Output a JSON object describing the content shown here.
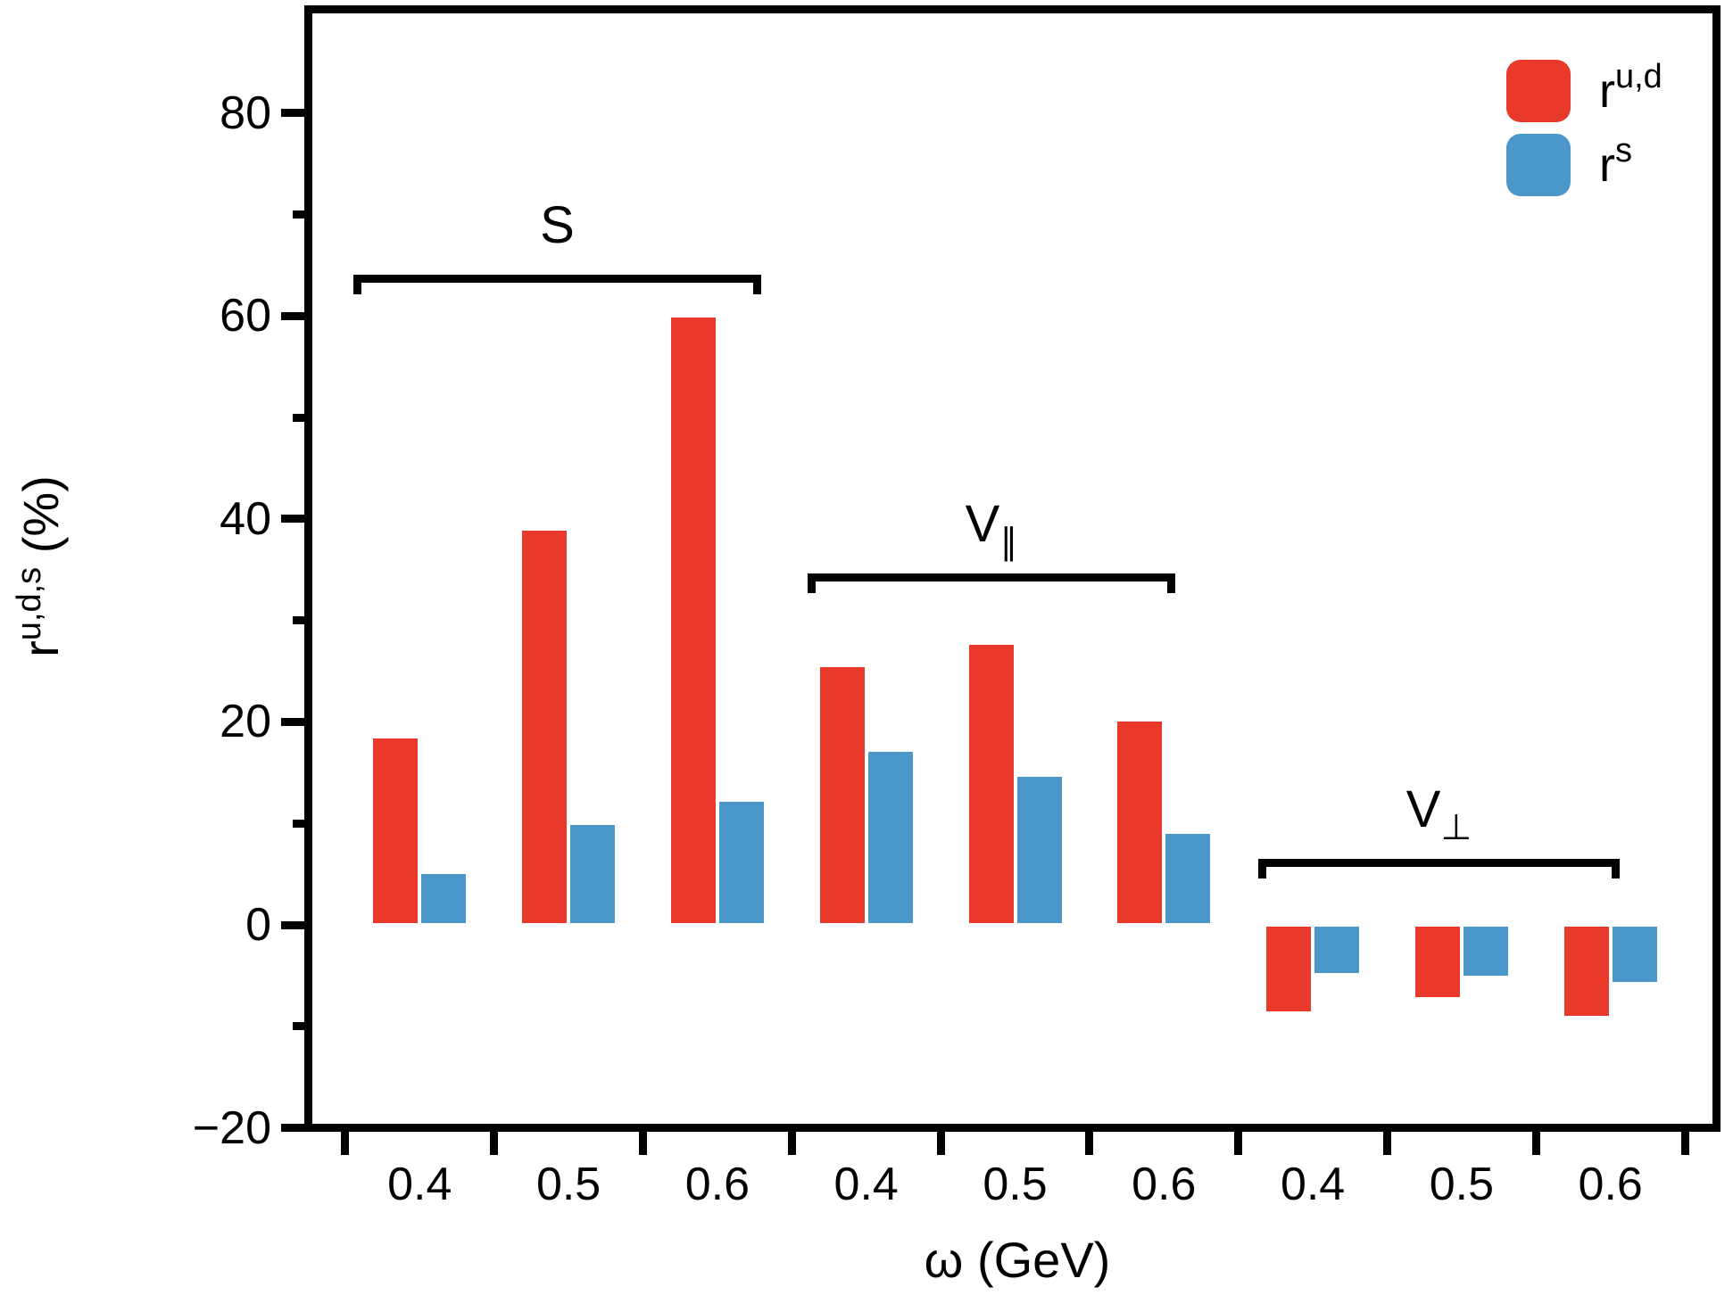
{
  "colors": {
    "red": "#e8392b",
    "blue": "#4b97c9",
    "axis": "#000000",
    "background": "#ffffff"
  },
  "axes": {
    "x_label": "ω (GeV)",
    "y_label": {
      "base": "r",
      "sup": "u,d,s",
      "rest": " (%)"
    },
    "y_major_ticks": [
      {
        "value": -20,
        "label": "−20"
      },
      {
        "value": 0,
        "label": "0"
      },
      {
        "value": 20,
        "label": "20"
      },
      {
        "value": 40,
        "label": "40"
      },
      {
        "value": 60,
        "label": "60"
      },
      {
        "value": 80,
        "label": "80"
      }
    ],
    "y_minor_ticks": [
      -10,
      10,
      30,
      50,
      70
    ]
  },
  "legend": {
    "entries": [
      {
        "series": "rud",
        "base": "r",
        "sup": "u,d",
        "color_key": "red"
      },
      {
        "series": "rs",
        "base": "r",
        "sup": "s",
        "color_key": "blue"
      }
    ]
  },
  "chart_data": {
    "type": "bar",
    "title": "",
    "xlabel": "ω (GeV)",
    "ylabel": "r^{u,d,s} (%)",
    "ylim": [
      -20,
      90
    ],
    "grid": false,
    "legend_position": "upper right",
    "categories": [
      "0.4",
      "0.5",
      "0.6"
    ],
    "series_meta": [
      {
        "key": "rud",
        "name": "r^{u,d}",
        "color_key": "red"
      },
      {
        "key": "rs",
        "name": "r^{s}",
        "color_key": "blue"
      }
    ],
    "groups": [
      {
        "id": "S",
        "label": {
          "base": "S",
          "sub": ""
        },
        "rud": [
          18.5,
          39,
          60
        ],
        "rs": [
          5.2,
          10,
          12.3
        ]
      },
      {
        "id": "V-parallel",
        "label": {
          "base": "V",
          "sub": "∥"
        },
        "rud": [
          25.6,
          27.8,
          20.2
        ],
        "rs": [
          17.2,
          14.8,
          9.1
        ]
      },
      {
        "id": "V-perp",
        "label": {
          "base": "V",
          "sub": "⊥"
        },
        "rud": [
          -8.7,
          -7.3,
          -9.1
        ],
        "rs": [
          -4.9,
          -5.2,
          -5.8
        ]
      }
    ]
  }
}
